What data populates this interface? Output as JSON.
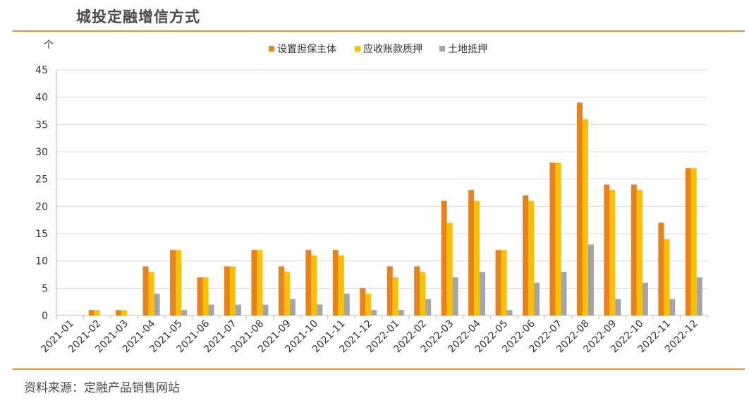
{
  "header": {
    "title": "城投定融增信方式"
  },
  "footer": {
    "source": "资料来源：定融产品销售网站"
  },
  "colors": {
    "rule": "#e8952e",
    "grid": "#d9d9d9",
    "axis": "#bfbfbf"
  },
  "chart_data": {
    "type": "bar",
    "unit": "个",
    "ylim": [
      0,
      45
    ],
    "yticks": [
      0,
      5,
      10,
      15,
      20,
      25,
      30,
      35,
      40,
      45
    ],
    "grid": true,
    "legend_position": "top-center",
    "categories": [
      "2021-01",
      "2021-02",
      "2021-03",
      "2021-04",
      "2021-05",
      "2021-06",
      "2021-07",
      "2021-08",
      "2021-09",
      "2021-10",
      "2021-11",
      "2021-12",
      "2022-01",
      "2022-02",
      "2022-03",
      "2022-04",
      "2022-05",
      "2022-06",
      "2022-07",
      "2022-08",
      "2022-09",
      "2022-10",
      "2022-11",
      "2022-12"
    ],
    "series": [
      {
        "name": "设置担保主体",
        "color": "#e8821e",
        "values": [
          0,
          1,
          1,
          9,
          12,
          7,
          9,
          12,
          9,
          12,
          12,
          5,
          9,
          9,
          21,
          23,
          12,
          22,
          28,
          39,
          24,
          24,
          17,
          27
        ]
      },
      {
        "name": "应收账款质押",
        "color": "#ffc000",
        "values": [
          0,
          1,
          1,
          8,
          12,
          7,
          9,
          12,
          8,
          11,
          11,
          4,
          7,
          8,
          17,
          21,
          12,
          21,
          28,
          36,
          23,
          23,
          14,
          27
        ]
      },
      {
        "name": "土地抵押",
        "color": "#a5a5a5",
        "values": [
          0,
          0,
          0,
          4,
          1,
          2,
          2,
          2,
          3,
          2,
          4,
          1,
          1,
          3,
          7,
          8,
          1,
          6,
          8,
          13,
          3,
          6,
          3,
          7
        ]
      }
    ]
  }
}
